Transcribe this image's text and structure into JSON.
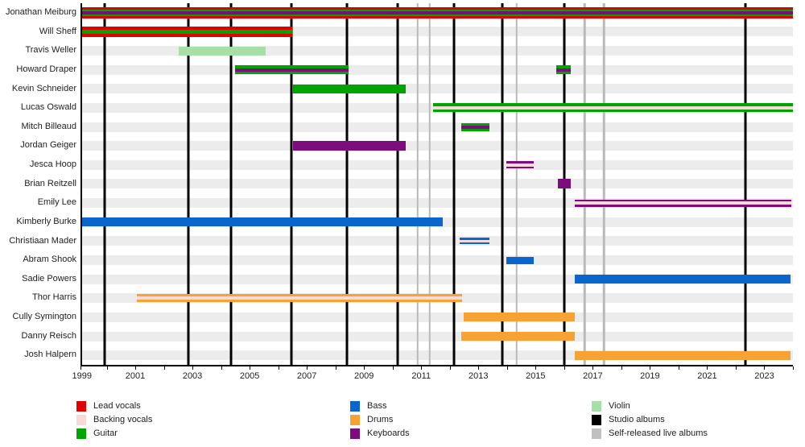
{
  "chart_data": {
    "type": "bar",
    "subtype": "band-members-timeline",
    "title": "",
    "xlabel": "",
    "ylabel": "",
    "grid": "off",
    "axis": {
      "start_year": 1999,
      "end_year": 2024,
      "tick_label_years": [
        1999,
        2001,
        2003,
        2005,
        2007,
        2009,
        2011,
        2013,
        2015,
        2017,
        2019,
        2021,
        2023
      ]
    },
    "role_colors": {
      "lead_vocals": "#e00000",
      "backing_vocals": "#f7d9d9",
      "guitar": "#00a400",
      "bass": "#0a66cc",
      "drums": "#f7a234",
      "keyboards": "#7d0d7d",
      "violin": "#a6e0a6"
    },
    "members": [
      {
        "name": "Jonathan Meiburg",
        "bars": [
          {
            "start_pct": 0,
            "end_pct": 100,
            "start_year": 1999,
            "end_year": 2024,
            "layers": [
              "lead_vocals",
              "guitar",
              "keyboards"
            ],
            "h": 14
          }
        ]
      },
      {
        "name": "Will Sheff",
        "bars": [
          {
            "start_pct": 0,
            "end_pct": 29.6,
            "start_year": 1999,
            "end_year": 2006.5,
            "layers": [
              "lead_vocals",
              "guitar"
            ],
            "h": 13
          }
        ]
      },
      {
        "name": "Travis Weller",
        "bars": [
          {
            "start_pct": 13.6,
            "end_pct": 25.8,
            "start_year": 2002.5,
            "end_year": 2005.5,
            "layers": [
              "violin"
            ],
            "h": 11
          }
        ]
      },
      {
        "name": "Howard Draper",
        "bars": [
          {
            "start_pct": 21.5,
            "end_pct": 37.5,
            "start_year": 2004.4,
            "end_year": 2008.4,
            "layers": [
              "guitar",
              "keyboards"
            ],
            "h": 11
          },
          {
            "start_pct": 66.7,
            "end_pct": 68.7,
            "start_year": 2015.7,
            "end_year": 2016.2,
            "layers": [
              "guitar",
              "keyboards"
            ],
            "h": 11
          }
        ]
      },
      {
        "name": "Kevin Schneider",
        "bars": [
          {
            "start_pct": 29.6,
            "end_pct": 45.5,
            "start_year": 2006.5,
            "end_year": 2010.4,
            "layers": [
              "guitar"
            ],
            "h": 11
          }
        ]
      },
      {
        "name": "Lucas Oswald",
        "bars": [
          {
            "start_pct": 49.4,
            "end_pct": 100,
            "start_year": 2011.4,
            "end_year": 2024,
            "layers": [
              "guitar",
              "backing_vocals"
            ],
            "h": 11
          }
        ]
      },
      {
        "name": "Mitch Billeaud",
        "bars": [
          {
            "start_pct": 53.3,
            "end_pct": 57.3,
            "start_year": 2012.4,
            "end_year": 2013.4,
            "layers": [
              "guitar",
              "keyboards"
            ],
            "h": 10
          }
        ]
      },
      {
        "name": "Jordan Geiger",
        "bars": [
          {
            "start_pct": 29.7,
            "end_pct": 45.5,
            "start_year": 2006.5,
            "end_year": 2010.4,
            "layers": [
              "keyboards"
            ],
            "h": 12
          }
        ]
      },
      {
        "name": "Jesca Hoop",
        "bars": [
          {
            "start_pct": 59.7,
            "end_pct": 63.5,
            "start_year": 2014,
            "end_year": 2014.9,
            "layers": [
              "keyboards",
              "backing_vocals"
            ],
            "h": 9
          }
        ]
      },
      {
        "name": "Brian Reitzell",
        "bars": [
          {
            "start_pct": 66.9,
            "end_pct": 68.7,
            "start_year": 2015.8,
            "end_year": 2016.2,
            "layers": [
              "keyboards"
            ],
            "h": 12
          }
        ]
      },
      {
        "name": "Emily Lee",
        "bars": [
          {
            "start_pct": 69.3,
            "end_pct": 99.8,
            "start_year": 2016.4,
            "end_year": 2024,
            "layers": [
              "keyboards",
              "backing_vocals"
            ],
            "h": 9
          }
        ]
      },
      {
        "name": "Kimberly Burke",
        "bars": [
          {
            "start_pct": 0,
            "end_pct": 50.7,
            "start_year": 1999,
            "end_year": 2011.7,
            "layers": [
              "bass"
            ],
            "h": 11
          }
        ]
      },
      {
        "name": "Christiaan Mader",
        "bars": [
          {
            "start_pct": 53.1,
            "end_pct": 57.3,
            "start_year": 2012.3,
            "end_year": 2013.4,
            "layers": [
              "bass",
              "backing_vocals"
            ],
            "h": 8
          }
        ]
      },
      {
        "name": "Abram Shook",
        "bars": [
          {
            "start_pct": 59.7,
            "end_pct": 63.5,
            "start_year": 2014,
            "end_year": 2014.9,
            "layers": [
              "bass"
            ],
            "h": 9
          }
        ]
      },
      {
        "name": "Sadie Powers",
        "bars": [
          {
            "start_pct": 69.3,
            "end_pct": 99.7,
            "start_year": 2016.4,
            "end_year": 2024,
            "layers": [
              "bass"
            ],
            "h": 11
          }
        ]
      },
      {
        "name": "Thor Harris",
        "bars": [
          {
            "start_pct": 7.7,
            "end_pct": 53.4,
            "start_year": 2001,
            "end_year": 2012.4,
            "layers": [
              "drums",
              "backing_vocals"
            ],
            "h": 10
          }
        ]
      },
      {
        "name": "Cully Symington",
        "bars": [
          {
            "start_pct": 53.7,
            "end_pct": 69.3,
            "start_year": 2012.4,
            "end_year": 2016.4,
            "layers": [
              "drums"
            ],
            "h": 11
          }
        ]
      },
      {
        "name": "Danny Reisch",
        "bars": [
          {
            "start_pct": 53.3,
            "end_pct": 69.3,
            "start_year": 2012.4,
            "end_year": 2016.4,
            "layers": [
              "drums"
            ],
            "h": 11
          }
        ]
      },
      {
        "name": "Josh Halpern",
        "bars": [
          {
            "start_pct": 69.3,
            "end_pct": 99.7,
            "start_year": 2016.4,
            "end_year": 2024,
            "layers": [
              "drums"
            ],
            "h": 11
          }
        ]
      }
    ],
    "album_lines": {
      "studio_color": "#000000",
      "live_color": "#b9b9b9",
      "studio_pcts": [
        3.2,
        14.9,
        20.9,
        29.4,
        37.3,
        44.4,
        52.3,
        59.1,
        67.8,
        93.3
      ],
      "live_pcts": [
        47.2,
        48.9,
        61.1,
        70.7,
        73.4
      ]
    },
    "legend": {
      "columns": [
        {
          "items": [
            {
              "label": "Lead vocals",
              "color": "#e00000"
            },
            {
              "label": "Backing vocals",
              "color": "#f7d9d9"
            },
            {
              "label": "Guitar",
              "color": "#00a400"
            }
          ]
        },
        {
          "items": [
            {
              "label": "Bass",
              "color": "#0a66cc"
            },
            {
              "label": "Drums",
              "color": "#f7a234"
            },
            {
              "label": "Keyboards",
              "color": "#7d0d7d"
            }
          ]
        },
        {
          "items": [
            {
              "label": "Violin",
              "color": "#a6e0a6"
            },
            {
              "label": "Studio albums",
              "color": "#000000"
            },
            {
              "label": "Self-released live albums",
              "color": "#c0c0c0"
            }
          ]
        }
      ]
    }
  }
}
